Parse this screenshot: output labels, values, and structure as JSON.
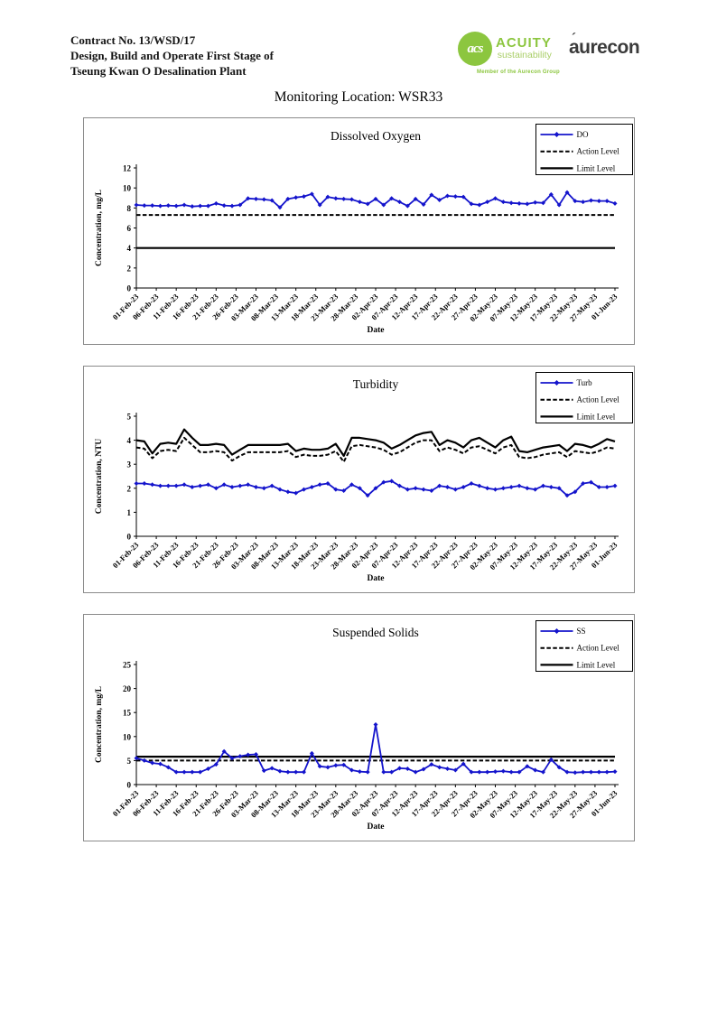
{
  "header": {
    "lines": [
      "Contract No. 13/WSD/17",
      "Design, Build and Operate First Stage of",
      "Tseung Kwan O Desalination Plant"
    ]
  },
  "page_title": "Monitoring Location: WSR33",
  "logos": {
    "acuity": {
      "monogram": "acs",
      "name": "ACUITY",
      "sub": "sustainability",
      "tagline": "Member of the Aurecon Group",
      "green": "#8CC63F"
    },
    "aurecon": {
      "name": "aurecon",
      "accent": "´",
      "color": "#3b3b3b"
    }
  },
  "colors": {
    "series_blue": "#1414CC",
    "level_black": "#000000"
  },
  "chart_data": {
    "shared_x": {
      "label": "Date",
      "total_days": 120,
      "tick_days": [
        0,
        5,
        10,
        15,
        20,
        25,
        30,
        35,
        40,
        45,
        50,
        55,
        60,
        65,
        70,
        75,
        80,
        85,
        90,
        95,
        100,
        105,
        110,
        115,
        120
      ],
      "tick_labels": [
        "01-Feb-23",
        "06-Feb-23",
        "11-Feb-23",
        "16-Feb-23",
        "21-Feb-23",
        "26-Feb-23",
        "03-Mar-23",
        "08-Mar-23",
        "13-Mar-23",
        "18-Mar-23",
        "23-Mar-23",
        "28-Mar-23",
        "02-Apr-23",
        "07-Apr-23",
        "12-Apr-23",
        "17-Apr-23",
        "22-Apr-23",
        "27-Apr-23",
        "02-May-23",
        "07-May-23",
        "12-May-23",
        "17-May-23",
        "22-May-23",
        "27-May-23",
        "01-Jun-23"
      ]
    },
    "charts": [
      {
        "id": "dissolved-oxygen",
        "type": "line",
        "title": "Dissolved Oxygen",
        "ylabel": "Concentration, mg/L",
        "xlabel": "Date",
        "ylim": [
          0,
          12
        ],
        "y_ticks": [
          0,
          2,
          4,
          6,
          8,
          10,
          12
        ],
        "grid": false,
        "legend_position": "top-right",
        "series": [
          {
            "name": "DO",
            "style": "data",
            "marker": "diamond",
            "values": [
              8.3,
              8.25,
              8.25,
              8.2,
              8.25,
              8.2,
              8.3,
              8.15,
              8.2,
              8.2,
              8.45,
              8.25,
              8.2,
              8.3,
              8.95,
              8.9,
              8.85,
              8.75,
              8.05,
              8.9,
              9.05,
              9.15,
              9.4,
              8.3,
              9.1,
              8.95,
              8.9,
              8.85,
              8.6,
              8.4,
              8.9,
              8.3,
              8.95,
              8.6,
              8.2,
              8.9,
              8.35,
              9.3,
              8.8,
              9.2,
              9.15,
              9.1,
              8.4,
              8.3,
              8.6,
              8.95,
              8.6,
              8.5,
              8.45,
              8.4,
              8.55,
              8.5,
              9.35,
              8.3,
              9.55,
              8.7,
              8.6,
              8.75,
              8.7,
              8.7,
              8.45
            ]
          },
          {
            "name": "Action Level",
            "style": "dashed",
            "value": 7.3
          },
          {
            "name": "Limit Level",
            "style": "solid",
            "value": 4.0
          }
        ]
      },
      {
        "id": "turbidity",
        "type": "line",
        "title": "Turbidity",
        "ylabel": "Concentration, NTU",
        "xlabel": "Date",
        "ylim": [
          0,
          5
        ],
        "y_ticks": [
          0,
          1,
          2,
          3,
          4,
          5
        ],
        "grid": false,
        "legend_position": "top-right",
        "series": [
          {
            "name": "Turb",
            "style": "data",
            "marker": "diamond",
            "values": [
              2.2,
              2.2,
              2.15,
              2.1,
              2.1,
              2.1,
              2.15,
              2.05,
              2.1,
              2.15,
              2.0,
              2.15,
              2.05,
              2.1,
              2.15,
              2.05,
              2.0,
              2.1,
              1.95,
              1.85,
              1.8,
              1.95,
              2.05,
              2.15,
              2.2,
              1.95,
              1.9,
              2.15,
              2.0,
              1.7,
              2.0,
              2.25,
              2.3,
              2.1,
              1.95,
              2.0,
              1.95,
              1.9,
              2.1,
              2.05,
              1.95,
              2.05,
              2.2,
              2.1,
              2.0,
              1.95,
              2.0,
              2.05,
              2.1,
              2.0,
              1.95,
              2.1,
              2.05,
              2.0,
              1.7,
              1.85,
              2.2,
              2.25,
              2.05,
              2.05,
              2.1
            ]
          },
          {
            "name": "Action Level",
            "style": "dashed",
            "values": [
              3.7,
              3.65,
              3.25,
              3.55,
              3.6,
              3.55,
              4.1,
              3.8,
              3.5,
              3.5,
              3.55,
              3.5,
              3.15,
              3.35,
              3.5,
              3.5,
              3.5,
              3.5,
              3.5,
              3.55,
              3.3,
              3.4,
              3.35,
              3.35,
              3.4,
              3.55,
              3.1,
              3.75,
              3.8,
              3.75,
              3.7,
              3.6,
              3.4,
              3.5,
              3.7,
              3.9,
              4.0,
              4.0,
              3.55,
              3.7,
              3.6,
              3.45,
              3.7,
              3.75,
              3.6,
              3.45,
              3.7,
              3.8,
              3.3,
              3.25,
              3.3,
              3.4,
              3.45,
              3.5,
              3.3,
              3.55,
              3.5,
              3.45,
              3.55,
              3.7,
              3.65
            ]
          },
          {
            "name": "Limit Level",
            "style": "solid",
            "values": [
              4.0,
              3.95,
              3.45,
              3.85,
              3.9,
              3.85,
              4.45,
              4.1,
              3.8,
              3.8,
              3.85,
              3.8,
              3.4,
              3.6,
              3.8,
              3.8,
              3.8,
              3.8,
              3.8,
              3.85,
              3.55,
              3.65,
              3.6,
              3.6,
              3.65,
              3.85,
              3.35,
              4.1,
              4.1,
              4.05,
              4.0,
              3.9,
              3.65,
              3.8,
              4.0,
              4.2,
              4.3,
              4.35,
              3.8,
              4.0,
              3.9,
              3.7,
              4.0,
              4.1,
              3.9,
              3.7,
              4.0,
              4.15,
              3.55,
              3.5,
              3.6,
              3.7,
              3.75,
              3.8,
              3.55,
              3.85,
              3.8,
              3.7,
              3.85,
              4.05,
              3.95
            ]
          }
        ]
      },
      {
        "id": "suspended-solids",
        "type": "line",
        "title": "Suspended Solids",
        "ylabel": "Concentration, mg/L",
        "xlabel": "Date",
        "ylim": [
          0,
          25
        ],
        "y_ticks": [
          0,
          5,
          10,
          15,
          20,
          25
        ],
        "grid": false,
        "legend_position": "top-right",
        "series": [
          {
            "name": "SS",
            "style": "data",
            "marker": "diamond",
            "values": [
              5.5,
              5.0,
              4.5,
              4.3,
              3.6,
              2.6,
              2.6,
              2.6,
              2.6,
              3.3,
              4.2,
              6.9,
              5.5,
              5.9,
              6.2,
              6.3,
              2.9,
              3.4,
              2.8,
              2.6,
              2.6,
              2.6,
              6.5,
              3.8,
              3.6,
              4.0,
              4.1,
              3.0,
              2.7,
              2.6,
              12.5,
              2.6,
              2.6,
              3.4,
              3.3,
              2.6,
              3.2,
              4.2,
              3.6,
              3.3,
              3.0,
              4.3,
              2.6,
              2.6,
              2.6,
              2.7,
              2.8,
              2.6,
              2.6,
              3.8,
              3.0,
              2.6,
              5.2,
              3.6,
              2.6,
              2.5,
              2.6,
              2.6,
              2.6,
              2.6,
              2.7
            ]
          },
          {
            "name": "Action Level",
            "style": "dashed",
            "value": 5.0
          },
          {
            "name": "Limit Level",
            "style": "solid",
            "value": 5.8
          }
        ]
      }
    ]
  }
}
